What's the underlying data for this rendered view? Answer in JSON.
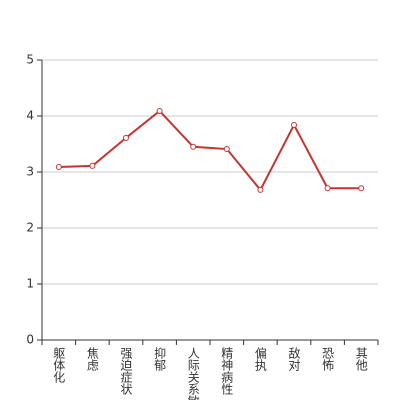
{
  "chart_data": {
    "type": "line",
    "categories": [
      "躯体化",
      "焦虑",
      "强迫症状",
      "抑郁",
      "人际关系敏感",
      "精神病性",
      "偏执",
      "敌对",
      "恐怖",
      "其他"
    ],
    "values": [
      3.09,
      3.11,
      3.61,
      4.09,
      3.45,
      3.41,
      2.68,
      3.84,
      2.71,
      2.71
    ],
    "color": "#c23531",
    "ylim": [
      0,
      5
    ],
    "yticks": [
      0,
      1,
      2,
      3,
      4,
      5
    ],
    "grid": true
  }
}
